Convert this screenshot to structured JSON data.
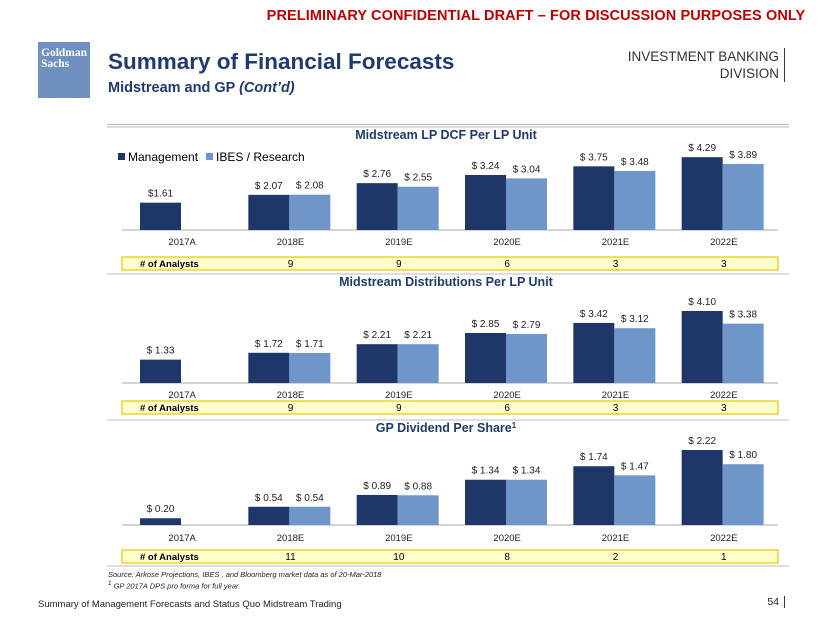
{
  "header": {
    "banner": "PRELIMINARY CONFIDENTIAL DRAFT – FOR DISCUSSION PURPOSES ONLY",
    "logo_line1": "Goldman",
    "logo_line2": "Sachs",
    "title": "Summary of Financial Forecasts",
    "subtitle_main": "Midstream and GP ",
    "subtitle_italic": "(Cont’d)",
    "division_line1": "INVESTMENT BANKING",
    "division_line2": "DIVISION"
  },
  "colors": {
    "management": "#1f3768",
    "research": "#6f96c8",
    "analysts_fill": "#ffffcc",
    "analysts_border": "#e6c700"
  },
  "legend": {
    "management": "Management",
    "research": "IBES / Research"
  },
  "chart_data": [
    {
      "type": "bar",
      "title": "Midstream LP DCF Per LP Unit",
      "categories": [
        "2017A",
        "2018E",
        "2019E",
        "2020E",
        "2021E",
        "2022E"
      ],
      "series": [
        {
          "name": "Management",
          "values": [
            1.61,
            2.07,
            2.76,
            3.24,
            3.75,
            4.29
          ],
          "labels": [
            "$1.61",
            "$ 2.07",
            "$ 2.76",
            "$ 3.24",
            "$ 3.75",
            "$ 4.29"
          ]
        },
        {
          "name": "IBES / Research",
          "values": [
            null,
            2.08,
            2.55,
            3.04,
            3.48,
            3.89
          ],
          "labels": [
            "",
            "$ 2.08",
            "$ 2.55",
            "$ 3.04",
            "$ 3.48",
            "$ 3.89"
          ]
        }
      ],
      "analysts_label": "# of Analysts",
      "analysts": [
        "9",
        "9",
        "6",
        "3",
        "3"
      ],
      "ylim": [
        0,
        4.3
      ]
    },
    {
      "type": "bar",
      "title": "Midstream Distributions Per LP Unit",
      "categories": [
        "2017A",
        "2018E",
        "2019E",
        "2020E",
        "2021E",
        "2022E"
      ],
      "series": [
        {
          "name": "Management",
          "values": [
            1.33,
            1.72,
            2.21,
            2.85,
            3.42,
            4.1
          ],
          "labels": [
            "$ 1.33",
            "$ 1.72",
            "$ 2.21",
            "$ 2.85",
            "$ 3.42",
            "$ 4.10"
          ]
        },
        {
          "name": "IBES / Research",
          "values": [
            null,
            1.71,
            2.21,
            2.79,
            3.12,
            3.38
          ],
          "labels": [
            "",
            "$ 1.71",
            "$ 2.21",
            "$ 2.79",
            "$ 3.12",
            "$ 3.38"
          ]
        }
      ],
      "analysts_label": "# of Analysts",
      "analysts": [
        "9",
        "9",
        "6",
        "3",
        "3"
      ],
      "ylim": [
        0,
        4.1
      ]
    },
    {
      "type": "bar",
      "title": "GP Dividend Per Share",
      "title_sup": "1",
      "categories": [
        "2017A",
        "2018E",
        "2019E",
        "2020E",
        "2021E",
        "2022E"
      ],
      "series": [
        {
          "name": "Management",
          "values": [
            0.2,
            0.54,
            0.89,
            1.34,
            1.74,
            2.22
          ],
          "labels": [
            "$ 0.20",
            "$ 0.54",
            "$ 0.89",
            "$ 1.34",
            "$ 1.74",
            "$ 2.22"
          ]
        },
        {
          "name": "IBES / Research",
          "values": [
            null,
            0.54,
            0.88,
            1.34,
            1.47,
            1.8
          ],
          "labels": [
            "",
            "$ 0.54",
            "$ 0.88",
            "$ 1.34",
            "$ 1.47",
            "$ 1.80"
          ]
        }
      ],
      "analysts_label": "# of Analysts",
      "analysts": [
        "11",
        "10",
        "8",
        "2",
        "1"
      ],
      "ylim": [
        0,
        2.22
      ]
    }
  ],
  "notes": {
    "source": "Source: Arkose Projections, IBES , and Bloomberg market data as of 20-Mar-2018",
    "footnote_num": "1",
    "footnote": " GP 2017A DPS pro forma for full year."
  },
  "footer": {
    "left": "Summary of Management Forecasts and Status Quo Midstream Trading",
    "page": "54"
  }
}
